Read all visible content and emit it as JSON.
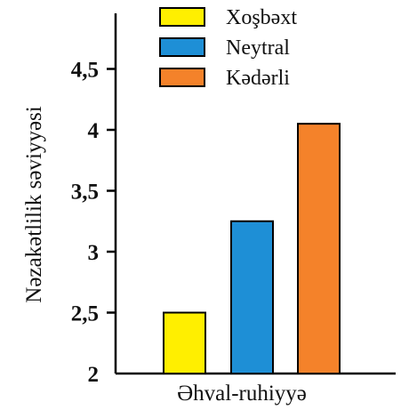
{
  "chart_data": {
    "type": "bar",
    "categories": [
      "Xoşbəxt",
      "Neytral",
      "Kədərli"
    ],
    "values": [
      2.5,
      3.25,
      4.05
    ],
    "colors": [
      "#ffef00",
      "#1e8fd6",
      "#f4822a"
    ],
    "title": "",
    "xlabel": "Əhval-ruhiyyə",
    "ylabel": "Nəzakətlilik səviyyəsi",
    "ylim": [
      2,
      5
    ],
    "yticks": [
      "2",
      "2,5",
      "3",
      "3,5",
      "4",
      "4,5"
    ],
    "legend": [
      "Xoşbəxt",
      "Neytral",
      "Kədərli"
    ],
    "legend_position": "top"
  }
}
